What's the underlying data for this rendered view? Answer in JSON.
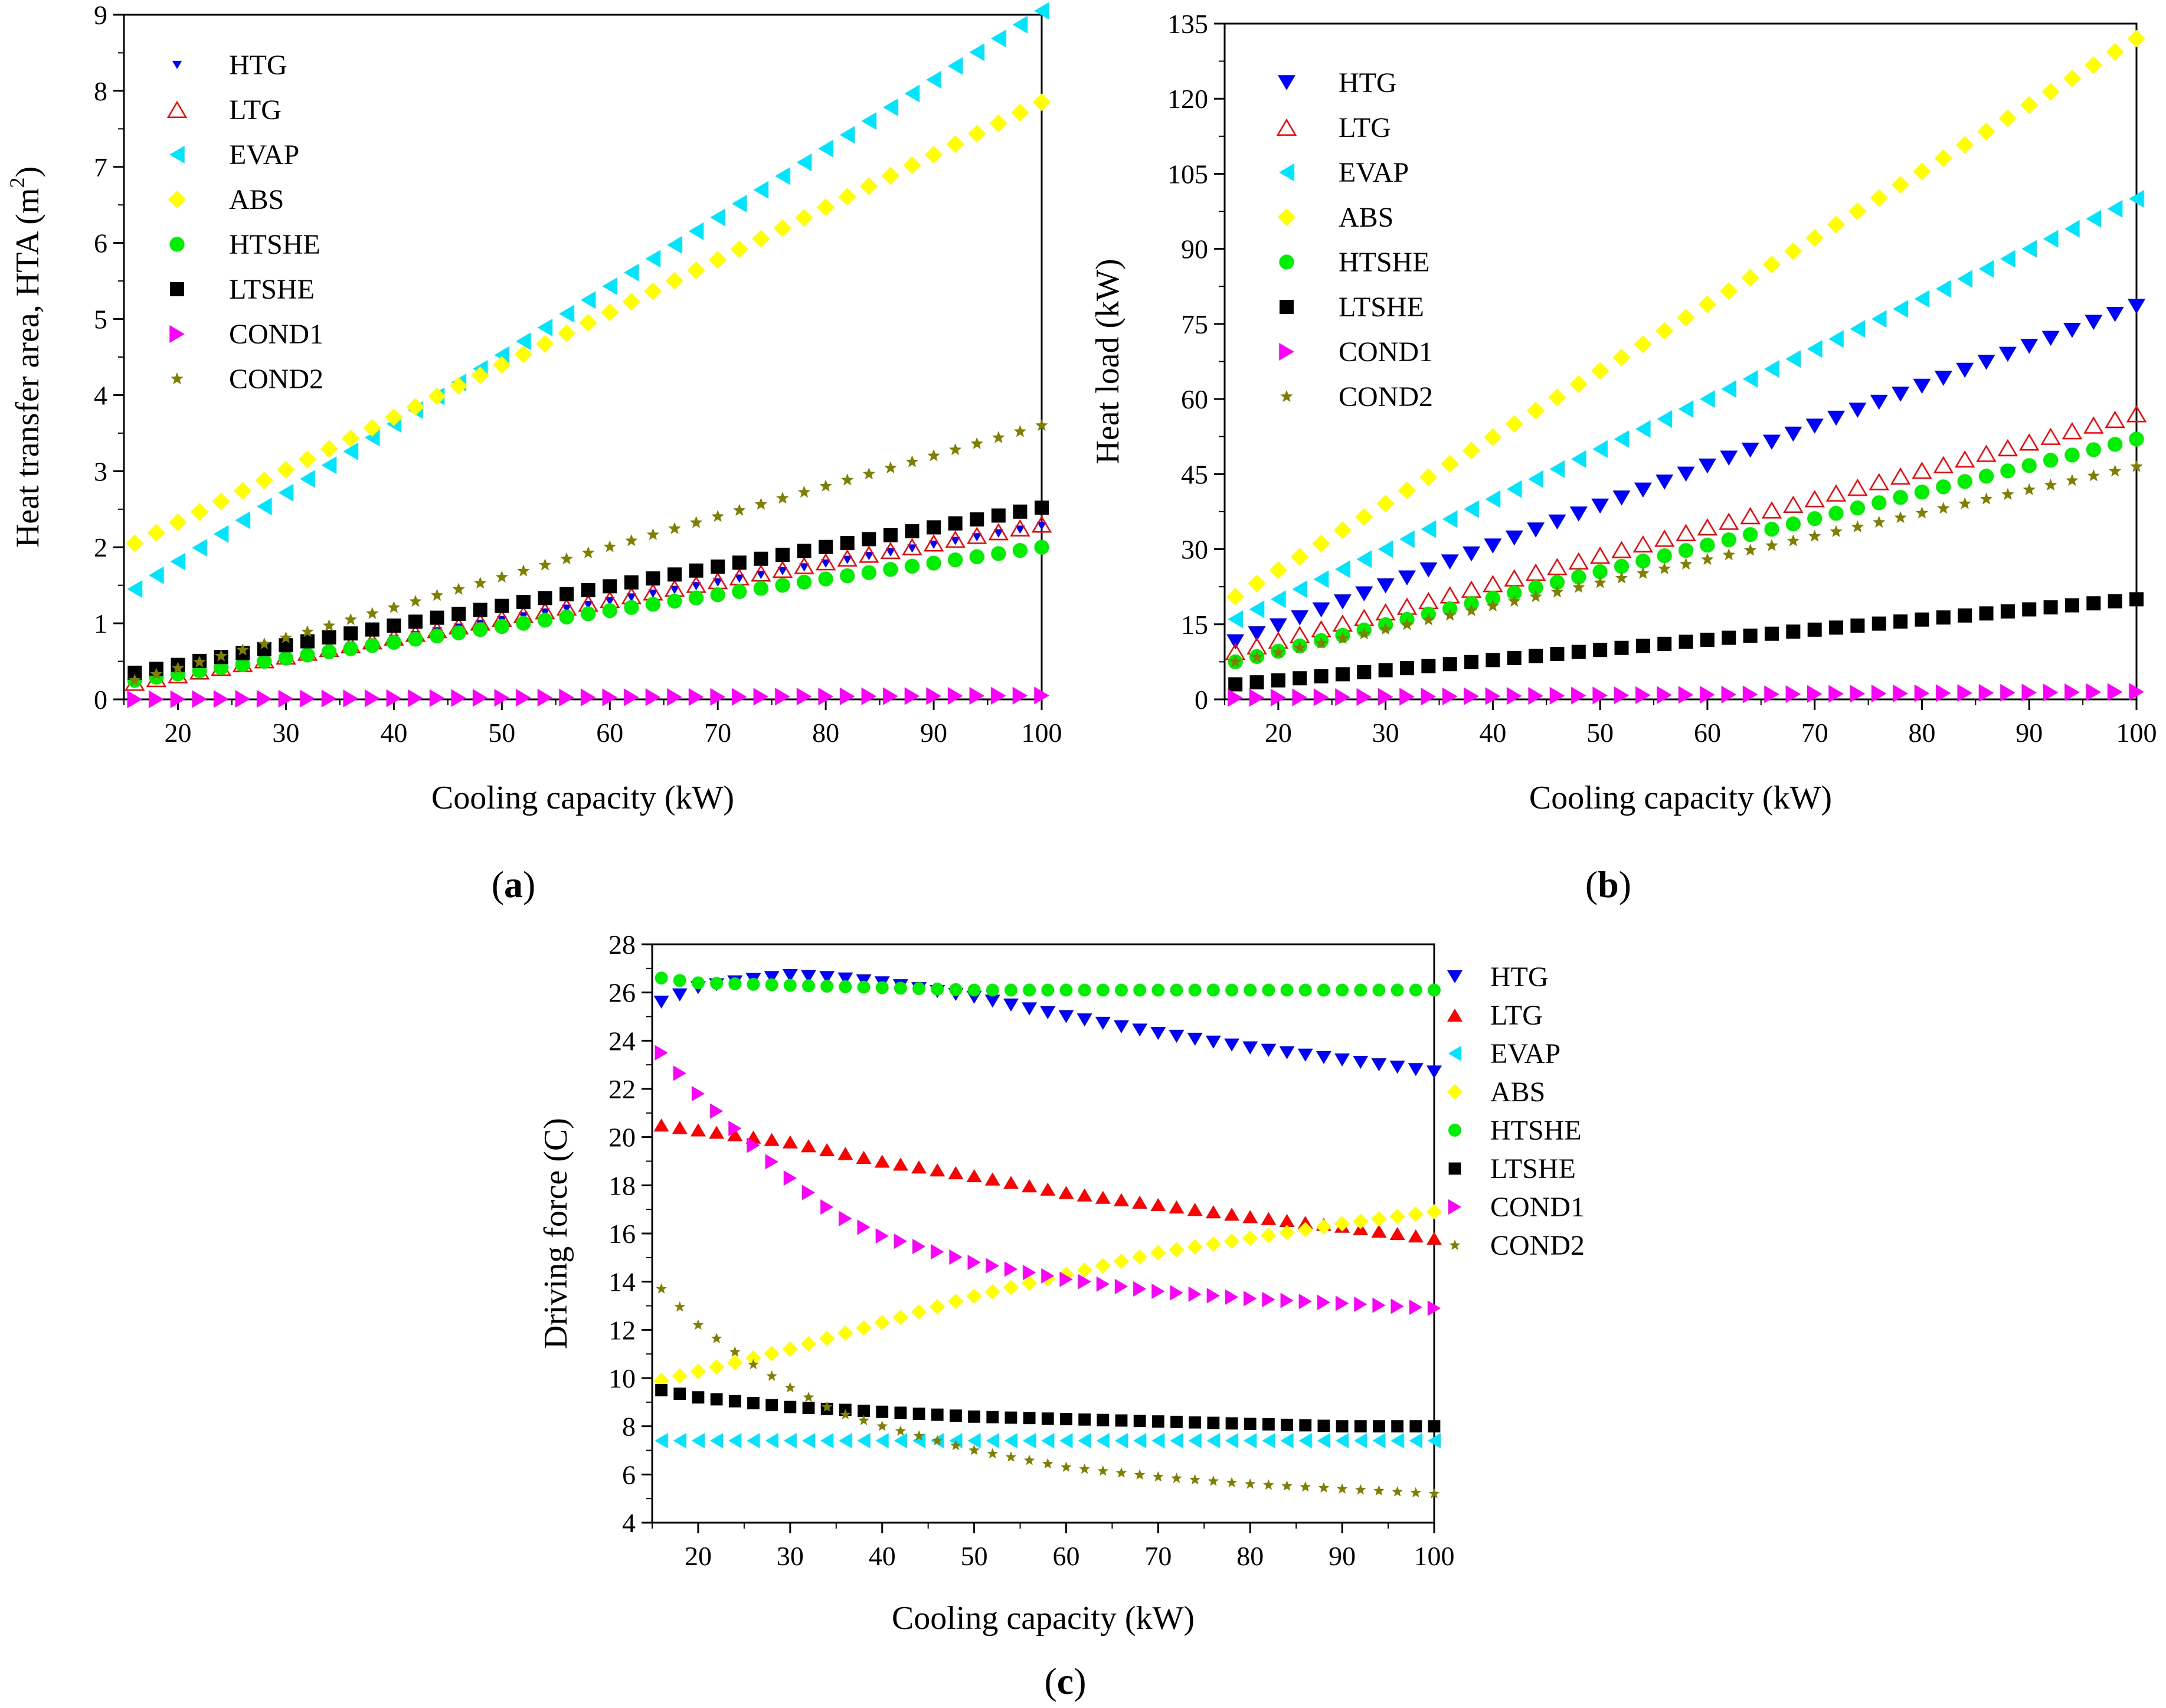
{
  "panels": [
    {
      "id": "a",
      "panel_label": "a",
      "chart_data": {
        "type": "scatter",
        "title": "",
        "xlabel": "Cooling capacity (kW)",
        "ylabel_main": "Heat transfer area, HTA (m",
        "ylabel_sup": "2",
        "ylabel_tail": ")",
        "xlim": [
          15,
          100
        ],
        "ylim": [
          0,
          9
        ],
        "xticks": [
          20,
          30,
          40,
          50,
          60,
          70,
          80,
          90,
          100
        ],
        "yticks": [
          0,
          1,
          2,
          3,
          4,
          5,
          6,
          7,
          8,
          9
        ],
        "x_start": 16,
        "x_end": 100,
        "x_step": 2,
        "legend_position": "top-left",
        "series": [
          {
            "name": "HTG",
            "marker": "tri-down-small",
            "color": "#0000ff",
            "y_start": 0.2,
            "y_end": 2.28,
            "curve": 1
          },
          {
            "name": "LTG",
            "marker": "tri-up-open",
            "color": "#ff0000",
            "y_start": 0.22,
            "y_end": 2.3,
            "curve": 1
          },
          {
            "name": "EVAP",
            "marker": "tri-left",
            "color": "#00e5ff",
            "y_start": 1.45,
            "y_end": 9.05,
            "curve": 1
          },
          {
            "name": "ABS",
            "marker": "diamond",
            "color": "#ffff00",
            "y_start": 2.05,
            "y_end": 7.85,
            "curve": 1
          },
          {
            "name": "HTSHE",
            "marker": "circle",
            "color": "#00ee00",
            "y_start": 0.25,
            "y_end": 2.0,
            "curve": 1
          },
          {
            "name": "LTSHE",
            "marker": "square",
            "color": "#000000",
            "y_start": 0.35,
            "y_end": 2.52,
            "curve": 1
          },
          {
            "name": "COND1",
            "marker": "tri-right",
            "color": "#ff00ff",
            "y_start": 0.0,
            "y_end": 0.05,
            "curve": 1
          },
          {
            "name": "COND2",
            "marker": "star",
            "color": "#808000",
            "y_start": 0.25,
            "y_end": 3.6,
            "curve": 1
          }
        ]
      }
    },
    {
      "id": "b",
      "panel_label": "b",
      "chart_data": {
        "type": "scatter",
        "title": "",
        "xlabel": "Cooling capacity (kW)",
        "ylabel_main": "Heat load (kW)",
        "ylabel_sup": "",
        "ylabel_tail": "",
        "xlim": [
          15,
          100
        ],
        "ylim": [
          0,
          135
        ],
        "xticks": [
          20,
          30,
          40,
          50,
          60,
          70,
          80,
          90,
          100
        ],
        "yticks": [
          0,
          15,
          30,
          45,
          60,
          75,
          90,
          105,
          120,
          135
        ],
        "x_start": 16,
        "x_end": 100,
        "x_step": 2,
        "legend_position": "top-left",
        "series": [
          {
            "name": "HTG",
            "marker": "tri-down",
            "color": "#0000ff",
            "y_start": 11.5,
            "y_end": 78.5,
            "curve": 1
          },
          {
            "name": "LTG",
            "marker": "tri-up-open",
            "color": "#ff0000",
            "y_start": 9.5,
            "y_end": 57,
            "curve": 1
          },
          {
            "name": "EVAP",
            "marker": "tri-left",
            "color": "#00e5ff",
            "y_start": 16,
            "y_end": 100,
            "curve": 1
          },
          {
            "name": "ABS",
            "marker": "diamond",
            "color": "#ffff00",
            "y_start": 20.5,
            "y_end": 132,
            "curve": 1
          },
          {
            "name": "HTSHE",
            "marker": "circle",
            "color": "#00ee00",
            "y_start": 7.5,
            "y_end": 52,
            "curve": 1
          },
          {
            "name": "LTSHE",
            "marker": "square",
            "color": "#000000",
            "y_start": 3,
            "y_end": 20,
            "curve": 1
          },
          {
            "name": "COND1",
            "marker": "tri-right",
            "color": "#ff00ff",
            "y_start": 0.3,
            "y_end": 1.5,
            "curve": 1
          },
          {
            "name": "COND2",
            "marker": "star",
            "color": "#808000",
            "y_start": 7.5,
            "y_end": 46.5,
            "curve": 1
          }
        ]
      }
    },
    {
      "id": "c",
      "panel_label": "c",
      "chart_data": {
        "type": "scatter",
        "title": "",
        "xlabel": "Cooling capacity (kW)",
        "ylabel_main": "Driving force (C)",
        "ylabel_sup": "",
        "ylabel_tail": "",
        "xlim": [
          15,
          100
        ],
        "ylim": [
          4,
          28
        ],
        "xticks": [
          20,
          30,
          40,
          50,
          60,
          70,
          80,
          90,
          100
        ],
        "yticks": [
          4,
          6,
          8,
          10,
          12,
          14,
          16,
          18,
          20,
          22,
          24,
          26,
          28
        ],
        "x_start": 16,
        "x_end": 100,
        "x_step": 2,
        "legend_position": "right",
        "series": [
          {
            "name": "HTG",
            "marker": "tri-down",
            "color": "#0000ff",
            "x": [
              16,
              20,
              25,
              30,
              35,
              40,
              45,
              50,
              60,
              70,
              80,
              90,
              100
            ],
            "y": [
              25.6,
              26.2,
              26.5,
              26.7,
              26.6,
              26.4,
              26.1,
              25.8,
              25.0,
              24.3,
              23.7,
              23.2,
              22.7
            ]
          },
          {
            "name": "LTG",
            "marker": "tri-up",
            "color": "#ff0000",
            "x": [
              16,
              30,
              40,
              50,
              60,
              70,
              80,
              90,
              100
            ],
            "y": [
              20.5,
              19.8,
              19.0,
              18.4,
              17.7,
              17.2,
              16.7,
              16.3,
              15.8
            ]
          },
          {
            "name": "EVAP",
            "marker": "tri-left",
            "color": "#00e5ff",
            "x": [
              16,
              100
            ],
            "y": [
              7.4,
              7.4
            ]
          },
          {
            "name": "ABS",
            "marker": "diamond",
            "color": "#ffff00",
            "x": [
              16,
              30,
              40,
              50,
              60,
              70,
              80,
              90,
              100
            ],
            "y": [
              9.9,
              11.2,
              12.3,
              13.4,
              14.3,
              15.2,
              15.8,
              16.4,
              16.9
            ]
          },
          {
            "name": "HTSHE",
            "marker": "circle",
            "color": "#00ee00",
            "x": [
              16,
              20,
              30,
              40,
              50,
              60,
              100
            ],
            "y": [
              26.6,
              26.4,
              26.3,
              26.2,
              26.1,
              26.1,
              26.1
            ]
          },
          {
            "name": "LTSHE",
            "marker": "square",
            "color": "#000000",
            "x": [
              16,
              20,
              30,
              40,
              50,
              60,
              70,
              80,
              90,
              100
            ],
            "y": [
              9.5,
              9.2,
              8.8,
              8.6,
              8.4,
              8.3,
              8.2,
              8.1,
              8.0,
              8.0
            ]
          },
          {
            "name": "COND1",
            "marker": "tri-right",
            "color": "#ff00ff",
            "x": [
              16,
              20,
              25,
              30,
              35,
              40,
              50,
              60,
              70,
              80,
              90,
              100
            ],
            "y": [
              23.5,
              21.8,
              20.0,
              18.3,
              16.8,
              15.9,
              14.8,
              14.1,
              13.6,
              13.3,
              13.1,
              12.9
            ]
          },
          {
            "name": "COND2",
            "marker": "star",
            "color": "#808000",
            "x": [
              16,
              20,
              25,
              30,
              35,
              40,
              50,
              60,
              70,
              80,
              90,
              100
            ],
            "y": [
              13.7,
              12.2,
              10.8,
              9.6,
              8.6,
              8.0,
              7.0,
              6.3,
              5.9,
              5.6,
              5.4,
              5.2
            ]
          }
        ]
      }
    }
  ]
}
